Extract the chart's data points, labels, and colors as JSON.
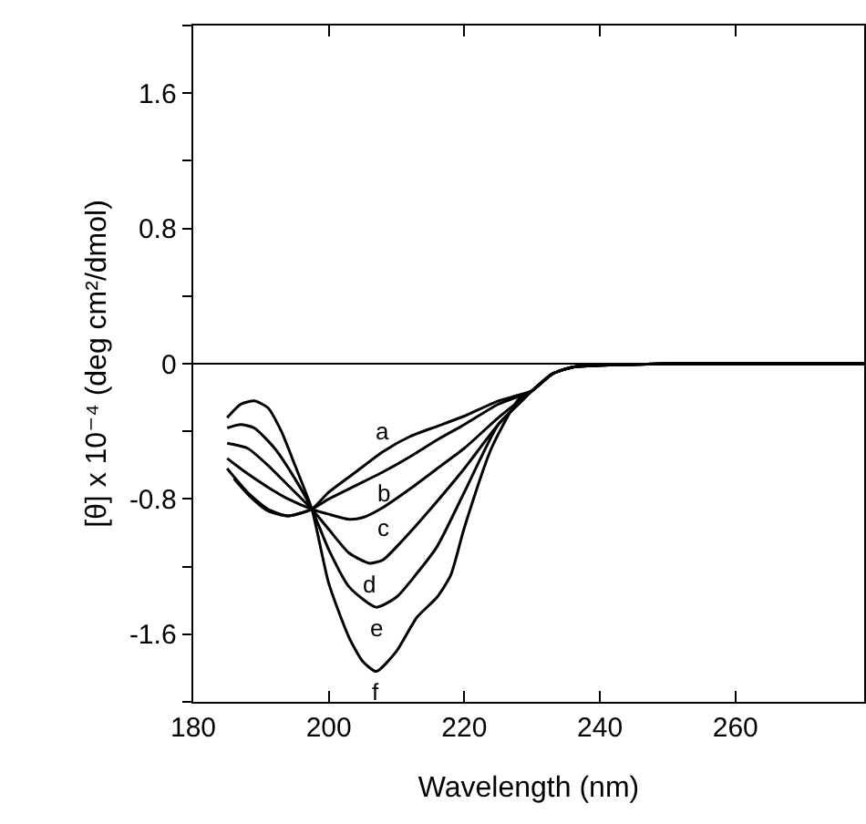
{
  "chart_data": {
    "type": "line",
    "xlabel": "Wavelength (nm)",
    "ylabel": "[θ] x 10⁻⁴ (deg cm²/dmol)",
    "xlim": [
      180,
      279
    ],
    "xticks": [
      180,
      200,
      220,
      240,
      260
    ],
    "ylim": [
      -2,
      2
    ],
    "yticks": [
      {
        "value": -2,
        "label": null
      },
      {
        "value": -1.6,
        "label": "-1.6"
      },
      {
        "value": -1.2,
        "label": null
      },
      {
        "value": -0.8,
        "label": "-0.8"
      },
      {
        "value": -0.4,
        "label": null
      },
      0,
      {
        "value": 0.4,
        "label": null
      },
      0.8,
      {
        "value": 1.2,
        "label": null
      },
      1.6,
      {
        "value": 2,
        "label": null
      }
    ],
    "grid": false,
    "marker": "none",
    "line_style": "solid",
    "ref_lines": [
      {
        "axis": "y",
        "value": 0,
        "color": "#000000"
      }
    ],
    "series": [
      {
        "color": "#000000",
        "x": [
          186,
          188,
          191,
          194,
          197.5,
          200,
          204,
          208,
          212,
          216,
          220,
          225,
          230,
          233,
          236,
          240,
          250,
          279
        ],
        "values": [
          -0.68,
          -0.77,
          -0.87,
          -0.9,
          -0.86,
          -0.76,
          -0.64,
          -0.52,
          -0.43,
          -0.37,
          -0.31,
          -0.22,
          -0.16,
          -0.06,
          -0.02,
          -0.01,
          0,
          0
        ]
      },
      {
        "color": "#000000",
        "x": [
          185,
          188,
          191,
          194,
          197.5,
          200,
          204,
          208,
          212,
          216,
          220,
          225,
          230,
          233,
          236,
          240,
          250,
          279
        ],
        "values": [
          -0.62,
          -0.76,
          -0.86,
          -0.9,
          -0.86,
          -0.8,
          -0.72,
          -0.64,
          -0.55,
          -0.45,
          -0.36,
          -0.24,
          -0.16,
          -0.06,
          -0.02,
          -0.01,
          0,
          0
        ]
      },
      {
        "color": "#000000",
        "x": [
          185,
          188,
          191,
          194,
          197.5,
          200,
          203,
          205,
          208,
          212,
          216,
          220,
          225,
          230,
          233,
          236,
          240,
          250,
          279
        ],
        "values": [
          -0.56,
          -0.65,
          -0.73,
          -0.8,
          -0.86,
          -0.89,
          -0.92,
          -0.91,
          -0.85,
          -0.74,
          -0.62,
          -0.5,
          -0.32,
          -0.16,
          -0.06,
          -0.02,
          -0.01,
          0,
          0
        ]
      },
      {
        "color": "#000000",
        "x": [
          185,
          188,
          191,
          194,
          197.5,
          200,
          203,
          206,
          208,
          211,
          215,
          220,
          225,
          230,
          233,
          236,
          240,
          250,
          279
        ],
        "values": [
          -0.47,
          -0.5,
          -0.6,
          -0.72,
          -0.86,
          -0.98,
          -1.12,
          -1.18,
          -1.16,
          -1.04,
          -0.86,
          -0.62,
          -0.36,
          -0.16,
          -0.06,
          -0.02,
          -0.01,
          0,
          0
        ]
      },
      {
        "color": "#000000",
        "x": [
          185,
          187,
          189,
          192,
          195,
          197.5,
          200,
          203,
          207,
          210,
          213,
          216,
          220,
          225,
          228,
          230,
          233,
          236,
          240,
          250,
          279
        ],
        "values": [
          -0.38,
          -0.36,
          -0.38,
          -0.5,
          -0.68,
          -0.86,
          -1.1,
          -1.32,
          -1.44,
          -1.38,
          -1.24,
          -1.08,
          -0.76,
          -0.36,
          -0.24,
          -0.16,
          -0.06,
          -0.02,
          -0.01,
          0,
          0
        ]
      },
      {
        "color": "#000000",
        "x": [
          185,
          187,
          189,
          191,
          193,
          195,
          197.5,
          200,
          203,
          205,
          207,
          210,
          213,
          216,
          218,
          220,
          224,
          228,
          230,
          233,
          236,
          240,
          250,
          279
        ],
        "values": [
          -0.32,
          -0.24,
          -0.22,
          -0.26,
          -0.4,
          -0.6,
          -0.86,
          -1.3,
          -1.62,
          -1.76,
          -1.82,
          -1.7,
          -1.5,
          -1.38,
          -1.25,
          -0.97,
          -0.5,
          -0.21,
          -0.16,
          -0.06,
          -0.02,
          -0.01,
          0,
          0
        ]
      }
    ],
    "annotations": [
      {
        "text": "a",
        "x": 208,
        "y": -0.52
      },
      {
        "text": "b",
        "x": 208,
        "y": -0.64
      },
      {
        "text": "c",
        "x": 208,
        "y": -0.85
      },
      {
        "text": "d",
        "x": 206,
        "y": -1.18
      },
      {
        "text": "e",
        "x": 207,
        "y": -1.44
      },
      {
        "text": "f",
        "x": 207,
        "y": -1.82
      }
    ]
  }
}
